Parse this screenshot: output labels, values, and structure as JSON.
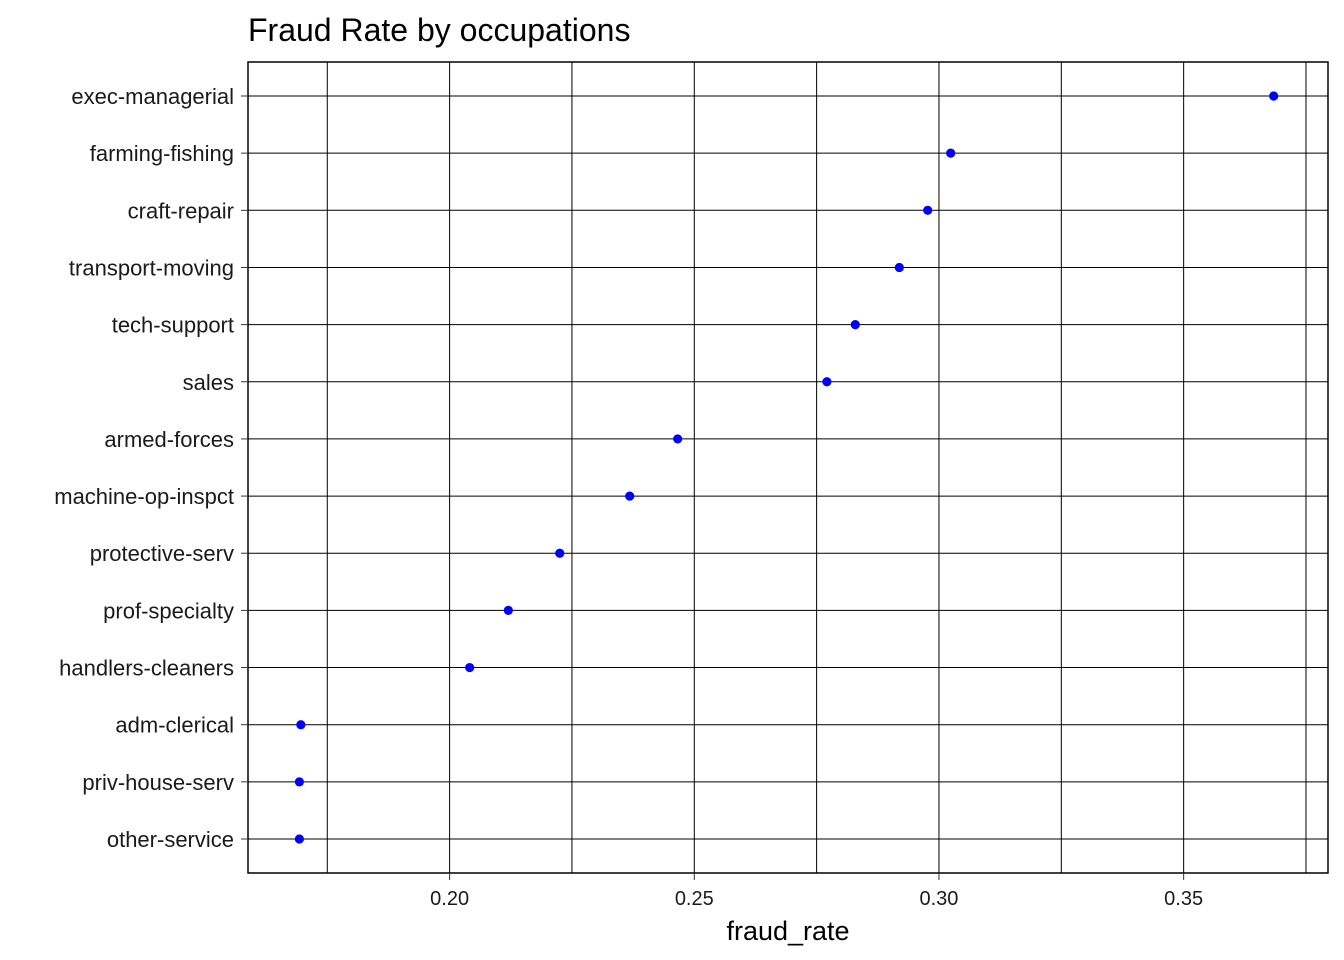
{
  "chart_data": {
    "type": "scatter",
    "title": "Fraud Rate by occupations",
    "xlabel": "fraud_rate",
    "ylabel": "",
    "xlim": [
      0.1588,
      0.3795
    ],
    "x_ticks": [
      "0.20",
      "0.25",
      "0.30",
      "0.35"
    ],
    "x_tick_values": [
      0.2,
      0.25,
      0.3,
      0.35
    ],
    "grid": true,
    "point_color": "#0000ff",
    "categories": [
      "exec-managerial",
      "farming-fishing",
      "craft-repair",
      "transport-moving",
      "tech-support",
      "sales",
      "armed-forces",
      "machine-op-inspct",
      "protective-serv",
      "prof-specialty",
      "handlers-cleaners",
      "adm-clerical",
      "priv-house-serv",
      "other-service"
    ],
    "values": [
      0.3684,
      0.3024,
      0.2977,
      0.2919,
      0.2829,
      0.2771,
      0.2466,
      0.2368,
      0.2225,
      0.212,
      0.2041,
      0.1696,
      0.1693,
      0.1693
    ]
  }
}
